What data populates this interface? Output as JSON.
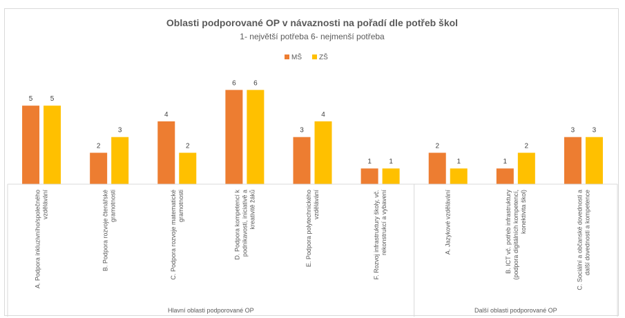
{
  "caption": "",
  "chart_data": {
    "type": "bar",
    "title": "Oblasti podporované OP v návaznosti na pořadí dle potřeb škol",
    "subtitle": "1- největší potřeba       6- nejmenší potřeba",
    "legend_position": "top",
    "grid": false,
    "ylim": [
      0,
      6.5
    ],
    "categories": [
      "A. Podpora inkluzivního/společného vzdělávání",
      "B. Podpora rozvoje čtenářské gramotnosti",
      "C. Podpora rozvoje matematické gramotnosti",
      "D. Podpora kompetencí k podnikavosti, iniciativě a kreativitě žáků",
      "E. Podpora polytechnického vzdělávání",
      "F. Rozvoj infrastruktury školy, vč. rekonstrukcí a vybavení",
      "A. Jazykové vzdělávání",
      "B. ICT vč. potřeb infrastruktury (podpora digitálních kompetencí, konektivita škol)",
      "C. Sociální a občanské dovednosti a další dovednosti a kompetence"
    ],
    "series": [
      {
        "name": "MŠ",
        "color": "#ed7d31",
        "values": [
          5,
          2,
          4,
          6,
          3,
          1,
          2,
          1,
          3
        ]
      },
      {
        "name": "ZŠ",
        "color": "#ffc000",
        "values": [
          5,
          3,
          2,
          6,
          4,
          1,
          1,
          2,
          3
        ]
      }
    ],
    "groups": [
      {
        "label": "Hlavní oblasti podporované OP",
        "span": 6
      },
      {
        "label": "Další oblasti podporované OP",
        "span": 3
      }
    ]
  }
}
